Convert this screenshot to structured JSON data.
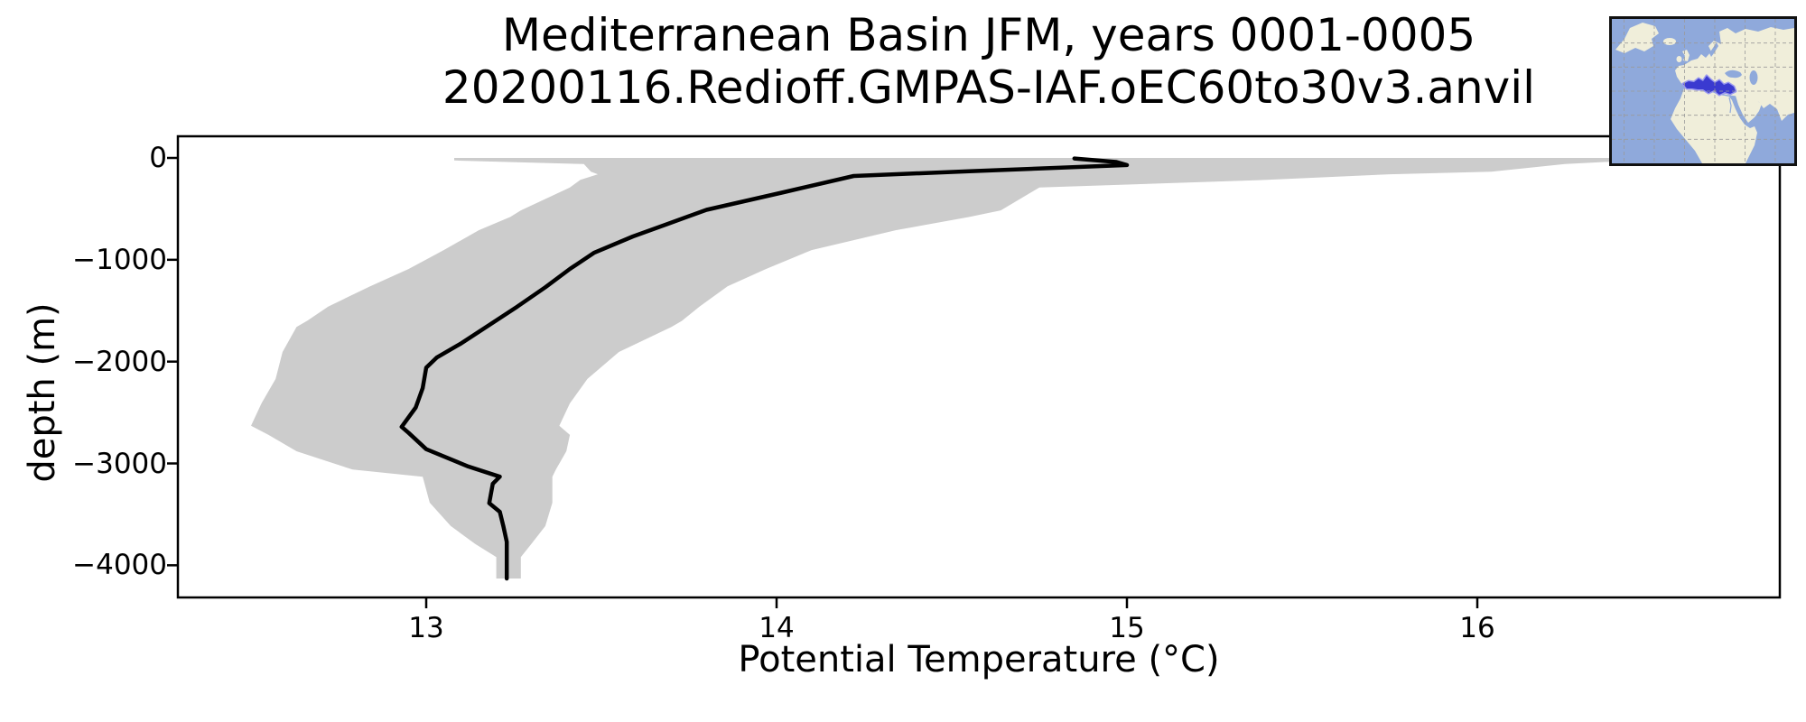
{
  "chart": {
    "title_line1": "Mediterranean Basin JFM, years 0001-0005",
    "title_line2": "20200116.Redioff.GMPAS-IAF.oEC60to30v3.anvil",
    "xlabel": "Potential Temperature (°C)",
    "ylabel": "depth (m)",
    "x_ticks": [
      13,
      14,
      15,
      16
    ],
    "x_tick_labels": [
      "13",
      "14",
      "15",
      "16"
    ],
    "y_ticks": [
      0,
      -1000,
      -2000,
      -3000,
      -4000
    ],
    "y_tick_labels": [
      "0",
      "−1000",
      "−2000",
      "−3000",
      "−4000"
    ]
  },
  "chart_data": {
    "type": "line",
    "title": "Mediterranean Basin JFM, years 0001-0005\n20200116.Redioff.GMPAS-IAF.oEC60to30v3.anvil",
    "xlabel": "Potential Temperature (°C)",
    "ylabel": "depth (m)",
    "xlim": [
      12.29,
      16.86
    ],
    "ylim": [
      -4316,
      213
    ],
    "grid": false,
    "legend": "none",
    "line_color": "#000000",
    "band_color": "#cccccc",
    "series_note": "mean potential temperature profile with min-max range band; mean_profile = [temp_C, depth_m], envelope = [depth_m, temp_min_C, temp_max_C]",
    "mean_profile": [
      [
        14.85,
        -5
      ],
      [
        14.97,
        -40
      ],
      [
        15.0,
        -70
      ],
      [
        14.78,
        -100
      ],
      [
        14.55,
        -130
      ],
      [
        14.22,
        -177
      ],
      [
        14.02,
        -337
      ],
      [
        13.8,
        -510
      ],
      [
        13.69,
        -647
      ],
      [
        13.59,
        -771
      ],
      [
        13.48,
        -930
      ],
      [
        13.41,
        -1090
      ],
      [
        13.34,
        -1270
      ],
      [
        13.26,
        -1460
      ],
      [
        13.18,
        -1640
      ],
      [
        13.1,
        -1820
      ],
      [
        13.03,
        -1960
      ],
      [
        13.0,
        -2060
      ],
      [
        12.99,
        -2260
      ],
      [
        12.97,
        -2450
      ],
      [
        12.93,
        -2640
      ],
      [
        12.95,
        -2700
      ],
      [
        13.0,
        -2860
      ],
      [
        13.12,
        -3030
      ],
      [
        13.21,
        -3130
      ],
      [
        13.19,
        -3200
      ],
      [
        13.18,
        -3390
      ],
      [
        13.21,
        -3475
      ],
      [
        13.22,
        -3615
      ],
      [
        13.23,
        -3770
      ],
      [
        13.23,
        -4130
      ]
    ],
    "envelope": [
      [
        0,
        13.08,
        16.53
      ],
      [
        -25,
        13.08,
        16.45
      ],
      [
        -60,
        13.45,
        16.25
      ],
      [
        -135,
        13.47,
        16.04
      ],
      [
        -160,
        13.49,
        15.75
      ],
      [
        -215,
        13.44,
        15.4
      ],
      [
        -290,
        13.41,
        14.75
      ],
      [
        -515,
        13.27,
        14.64
      ],
      [
        -580,
        13.24,
        14.55
      ],
      [
        -710,
        13.15,
        14.34
      ],
      [
        -905,
        13.05,
        14.1
      ],
      [
        -1090,
        12.95,
        13.97
      ],
      [
        -1260,
        12.84,
        13.86
      ],
      [
        -1460,
        12.72,
        13.78
      ],
      [
        -1600,
        12.66,
        13.73
      ],
      [
        -1660,
        12.63,
        13.7
      ],
      [
        -1905,
        12.59,
        13.55
      ],
      [
        -2170,
        12.57,
        13.46
      ],
      [
        -2410,
        12.53,
        13.41
      ],
      [
        -2630,
        12.5,
        13.38
      ],
      [
        -2720,
        12.55,
        13.41
      ],
      [
        -2880,
        12.63,
        13.4
      ],
      [
        -3060,
        12.79,
        13.37
      ],
      [
        -3130,
        12.99,
        13.36
      ],
      [
        -3385,
        13.01,
        13.36
      ],
      [
        -3615,
        13.07,
        13.34
      ],
      [
        -3790,
        13.14,
        13.3
      ],
      [
        -3920,
        13.2,
        13.27
      ],
      [
        -4130,
        13.2,
        13.27
      ]
    ]
  },
  "inset_map": {
    "region_label": "Mediterranean Basin highlighted on world map",
    "colors": {
      "ocean": "#8fa9db",
      "land": "#f0eeda",
      "highlight_fill": "#3a3ad0",
      "highlight_edge": "#9a9aee",
      "gridline": "#9a9a9a",
      "border": "#111111"
    }
  }
}
